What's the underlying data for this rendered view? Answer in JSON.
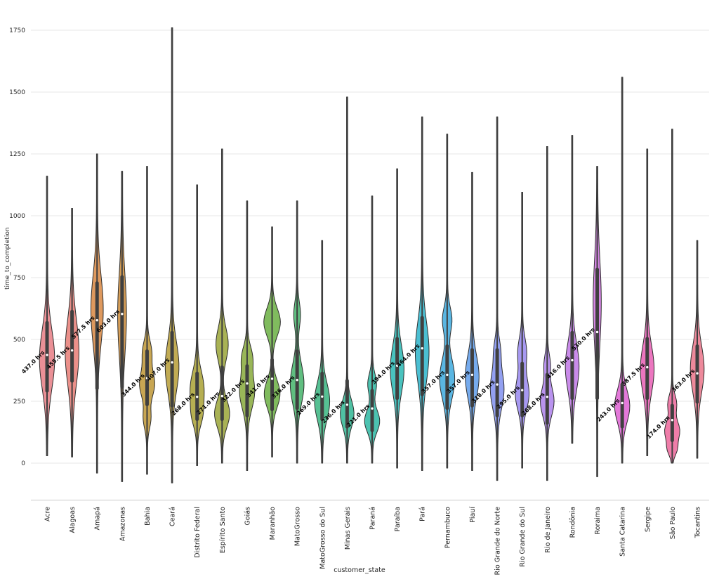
{
  "chart_data": {
    "type": "violin",
    "title": "",
    "xlabel": "customer_state",
    "ylabel": "time_to_completion",
    "annotation_unit": "hrs",
    "y_ticks": [
      0,
      250,
      500,
      750,
      1000,
      1250,
      1500,
      1750
    ],
    "y_range": [
      -150,
      1800
    ],
    "grid": "horizontal",
    "colors": {
      "grid": "#e7e7e7",
      "spine": "#cccccc",
      "inner_box": "#404040",
      "edge": "#2e2e2e",
      "tick_text": "#262626",
      "annotation_text": "#000000"
    },
    "states": [
      {
        "label": "Acre",
        "color": "#e98a90",
        "annotation": "437.0 hrs",
        "median": 437.0,
        "q1": 285,
        "q3": 575,
        "min": 30,
        "max": 1160,
        "w": 10,
        "modes": [
          [
            420,
            120,
            1
          ]
        ]
      },
      {
        "label": "Alagoas",
        "color": "#ea8a84",
        "annotation": "455.5 hrs",
        "median": 455.5,
        "q1": 325,
        "q3": 620,
        "min": 25,
        "max": 1030,
        "w": 9,
        "modes": [
          [
            450,
            130,
            1
          ]
        ]
      },
      {
        "label": "Amapá",
        "color": "#dc9355",
        "annotation": "577.5 hrs",
        "median": 577.5,
        "q1": 295,
        "q3": 735,
        "min": -40,
        "max": 1250,
        "w": 8,
        "modes": [
          [
            620,
            140,
            1
          ]
        ]
      },
      {
        "label": "Amazonas",
        "color": "#d4994e",
        "annotation": "603.0 hrs",
        "median": 603.0,
        "q1": 300,
        "q3": 760,
        "min": -75,
        "max": 1180,
        "w": 5.5,
        "modes": [
          [
            600,
            160,
            1
          ]
        ]
      },
      {
        "label": "Bahia",
        "color": "#c5a14a",
        "annotation": "344.0 hrs",
        "median": 344.0,
        "q1": 230,
        "q3": 460,
        "min": -45,
        "max": 1200,
        "w": 10,
        "modes": [
          [
            320,
            55,
            1
          ],
          [
            450,
            45,
            0.55
          ],
          [
            180,
            40,
            0.45
          ]
        ]
      },
      {
        "label": "Ceará",
        "color": "#bea74b",
        "annotation": "407.0 hrs",
        "median": 407.0,
        "q1": 225,
        "q3": 535,
        "min": -80,
        "max": 1760,
        "w": 9,
        "modes": [
          [
            390,
            100,
            1
          ]
        ]
      },
      {
        "label": "Distrito Federal",
        "color": "#b2ab49",
        "annotation": "268.0 hrs",
        "median": 268.0,
        "q1": 170,
        "q3": 370,
        "min": -10,
        "max": 1125,
        "w": 9,
        "modes": [
          [
            300,
            70,
            1
          ],
          [
            190,
            45,
            0.55
          ]
        ]
      },
      {
        "label": "Espírito Santo",
        "color": "#a4ae4c",
        "annotation": "271.0 hrs",
        "median": 271.0,
        "q1": 170,
        "q3": 395,
        "min": 0,
        "max": 1270,
        "w": 10,
        "modes": [
          [
            200,
            55,
            1
          ],
          [
            480,
            65,
            0.8
          ]
        ]
      },
      {
        "label": "Goiás",
        "color": "#93b24f",
        "annotation": "322.0 hrs",
        "median": 322.0,
        "q1": 185,
        "q3": 400,
        "min": -30,
        "max": 1060,
        "w": 10,
        "modes": [
          [
            290,
            70,
            1
          ],
          [
            430,
            45,
            0.6
          ]
        ]
      },
      {
        "label": "Maranhão",
        "color": "#79b755",
        "annotation": "341.0 hrs",
        "median": 341.0,
        "q1": 210,
        "q3": 425,
        "min": 25,
        "max": 955,
        "w": 11,
        "modes": [
          [
            280,
            55,
            0.95
          ],
          [
            570,
            55,
            1
          ]
        ]
      },
      {
        "label": "MatoGrosso",
        "color": "#57bb79",
        "annotation": "336.0 hrs",
        "median": 336.0,
        "q1": 215,
        "q3": 460,
        "min": 0,
        "max": 1060,
        "w": 9,
        "modes": [
          [
            320,
            80,
            1
          ],
          [
            600,
            50,
            0.45
          ]
        ]
      },
      {
        "label": "MatoGrosso do Sul",
        "color": "#4dbd8d",
        "annotation": "269.0 hrs",
        "median": 269.0,
        "q1": 170,
        "q3": 370,
        "min": 0,
        "max": 900,
        "w": 10,
        "modes": [
          [
            250,
            75,
            1
          ]
        ]
      },
      {
        "label": "Minas Gerais",
        "color": "#46be9e",
        "annotation": "236.0 hrs",
        "median": 236.0,
        "q1": 140,
        "q3": 340,
        "min": 0,
        "max": 1480,
        "w": 9,
        "modes": [
          [
            200,
            55,
            1
          ]
        ]
      },
      {
        "label": "Paraná",
        "color": "#42bfac",
        "annotation": "221.0 hrs",
        "median": 221.0,
        "q1": 125,
        "q3": 300,
        "min": 0,
        "max": 1080,
        "w": 10,
        "modes": [
          [
            170,
            45,
            1
          ],
          [
            320,
            40,
            0.55
          ]
        ]
      },
      {
        "label": "Paraíba",
        "color": "#3fbfbb",
        "annotation": "394.0 hrs",
        "median": 394.0,
        "q1": 255,
        "q3": 510,
        "min": -20,
        "max": 1190,
        "w": 9,
        "modes": [
          [
            380,
            95,
            1
          ]
        ]
      },
      {
        "label": "Pará",
        "color": "#41bcd0",
        "annotation": "464.0 hrs",
        "median": 464.0,
        "q1": 270,
        "q3": 595,
        "min": -30,
        "max": 1400,
        "w": 9,
        "modes": [
          [
            450,
            120,
            1
          ]
        ]
      },
      {
        "label": "Pernambuco",
        "color": "#51b2e0",
        "annotation": "357.0 hrs",
        "median": 357.0,
        "q1": 215,
        "q3": 480,
        "min": -20,
        "max": 1330,
        "w": 10,
        "modes": [
          [
            340,
            80,
            1
          ],
          [
            580,
            50,
            0.6
          ]
        ]
      },
      {
        "label": "Piauí",
        "color": "#6fa6ec",
        "annotation": "357.0 hrs",
        "median": 357.0,
        "q1": 225,
        "q3": 465,
        "min": -30,
        "max": 1175,
        "w": 9,
        "modes": [
          [
            350,
            85,
            1
          ]
        ]
      },
      {
        "label": "Rio Grande do Norte",
        "color": "#8d9bf0",
        "annotation": "318.0 hrs",
        "median": 318.0,
        "q1": 185,
        "q3": 465,
        "min": -70,
        "max": 1400,
        "w": 9,
        "modes": [
          [
            300,
            80,
            1
          ],
          [
            460,
            45,
            0.35
          ]
        ]
      },
      {
        "label": "Rio Grande do Sul",
        "color": "#a294f0",
        "annotation": "295.0 hrs",
        "median": 295.0,
        "q1": 185,
        "q3": 410,
        "min": -20,
        "max": 1095,
        "w": 9,
        "modes": [
          [
            280,
            65,
            1
          ],
          [
            450,
            55,
            0.6
          ]
        ]
      },
      {
        "label": "Rio de Janeiro",
        "color": "#b58ded",
        "annotation": "268.0 hrs",
        "median": 268.0,
        "q1": 155,
        "q3": 365,
        "min": -70,
        "max": 1280,
        "w": 9,
        "modes": [
          [
            250,
            60,
            1
          ],
          [
            400,
            40,
            0.4
          ]
        ]
      },
      {
        "label": "Rondônia",
        "color": "#c685e8",
        "annotation": "416.0 hrs",
        "median": 416.0,
        "q1": 255,
        "q3": 535,
        "min": 80,
        "max": 1325,
        "w": 9,
        "modes": [
          [
            390,
            95,
            1
          ]
        ]
      },
      {
        "label": "Roraima",
        "color": "#d37ee3",
        "annotation": "530.0 hrs",
        "median": 530.0,
        "q1": 255,
        "q3": 790,
        "min": -55,
        "max": 1200,
        "w": 5,
        "modes": [
          [
            650,
            170,
            1
          ]
        ]
      },
      {
        "label": "Santa Catarina",
        "color": "#e272d7",
        "annotation": "243.0 hrs",
        "median": 243.0,
        "q1": 140,
        "q3": 325,
        "min": 0,
        "max": 1560,
        "w": 10,
        "modes": [
          [
            230,
            65,
            1
          ]
        ]
      },
      {
        "label": "Sergipe",
        "color": "#ea6fbc",
        "annotation": "387.5 hrs",
        "median": 387.5,
        "q1": 255,
        "q3": 510,
        "min": 30,
        "max": 1270,
        "w": 9,
        "modes": [
          [
            380,
            95,
            1
          ]
        ]
      },
      {
        "label": "São Paulo",
        "color": "#ee76a4",
        "annotation": "174.0 hrs",
        "median": 174.0,
        "q1": 85,
        "q3": 240,
        "min": 0,
        "max": 1350,
        "w": 10,
        "modes": [
          [
            130,
            40,
            1
          ],
          [
            240,
            35,
            0.55
          ],
          [
            55,
            25,
            0.5
          ]
        ]
      },
      {
        "label": "Tocantins",
        "color": "#ec8396",
        "annotation": "363.0 hrs",
        "median": 363.0,
        "q1": 240,
        "q3": 480,
        "min": 20,
        "max": 900,
        "w": 9,
        "modes": [
          [
            380,
            95,
            1
          ]
        ]
      }
    ]
  }
}
